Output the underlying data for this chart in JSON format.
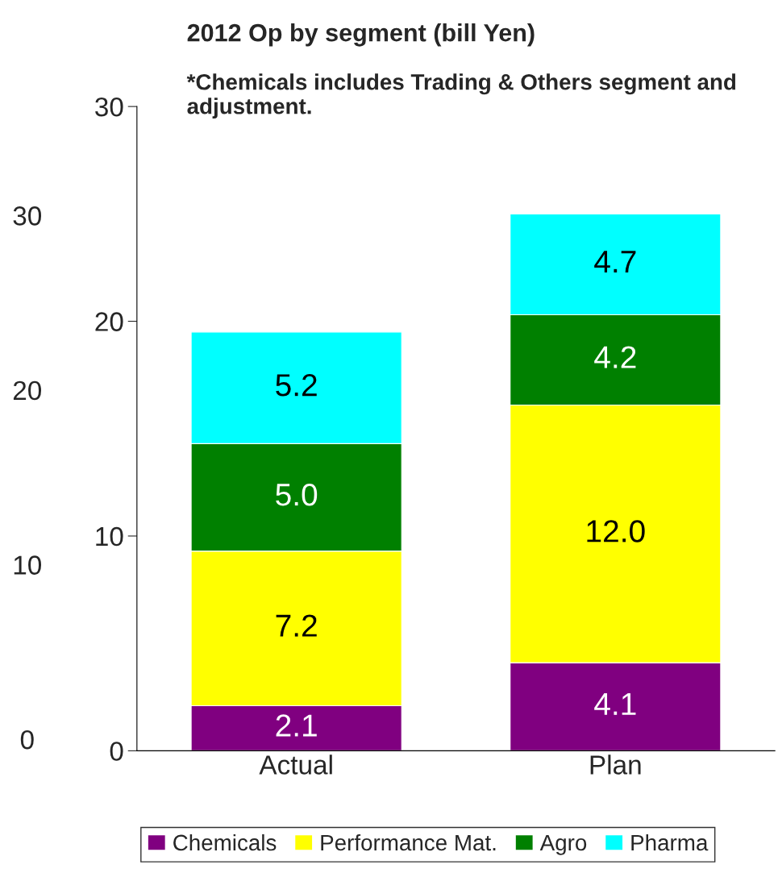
{
  "chart_data": {
    "type": "bar",
    "stacked": true,
    "title": "2012 Op by segment (bill Yen)",
    "subtitle": "*Chemicals includes Trading & Others segment and adjustment.",
    "categories": [
      "Actual",
      "Plan"
    ],
    "series": [
      {
        "name": "Chemicals",
        "color": "#800080",
        "values": [
          2.1,
          4.1
        ],
        "value_labels": [
          "2.1",
          "4.1"
        ]
      },
      {
        "name": "Performance Mat.",
        "color": "#ffff00",
        "values": [
          7.2,
          12.0
        ],
        "value_labels": [
          "7.2",
          "12.0"
        ]
      },
      {
        "name": "Agro",
        "color": "#008000",
        "values": [
          5.0,
          4.2
        ],
        "value_labels": [
          "5.0",
          "4.2"
        ]
      },
      {
        "name": "Pharma",
        "color": "#00ffff",
        "values": [
          5.2,
          4.7
        ],
        "value_labels": [
          "5.2",
          "4.7"
        ]
      }
    ],
    "ylim": [
      0,
      30
    ],
    "yticks": [
      0,
      10,
      20,
      30
    ],
    "legend": "bottom",
    "grid": false,
    "annotations": [
      "30",
      "20",
      "10",
      "0"
    ]
  }
}
